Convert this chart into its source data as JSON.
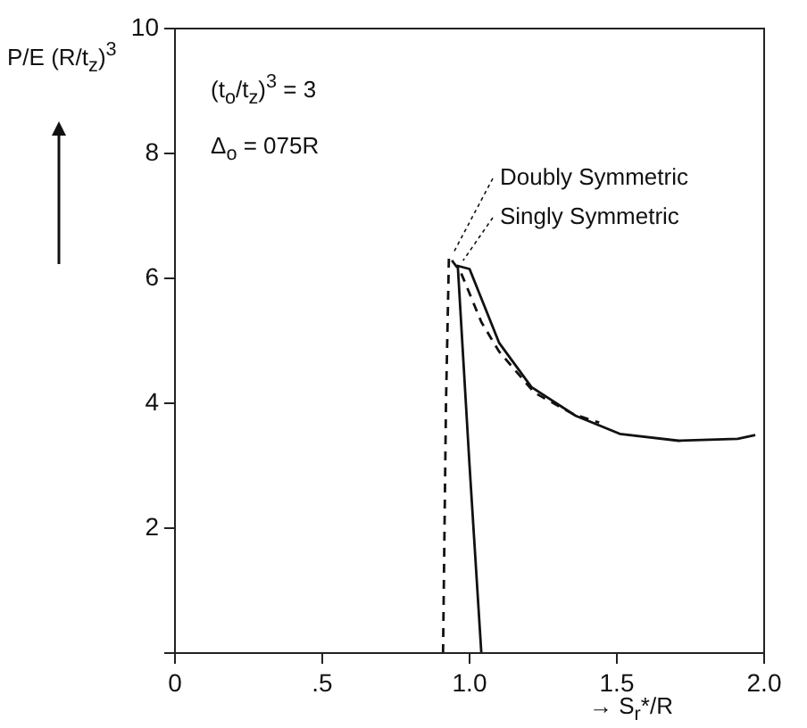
{
  "chart_data": {
    "type": "line",
    "xlabel": "→ S$_{r}$*/R",
    "ylabel": "P/E (R/t$_{z}$)$^{3}$",
    "annotations": [
      "(t$_{o}$/t$_{z}$)$^{3}$ = 3",
      "Δ$_{o}$ = 075R"
    ],
    "xlim": [
      0,
      2
    ],
    "xticks": [
      0,
      {
        "value": 0.5,
        "label": ".5"
      },
      {
        "value": 1,
        "label": "1.0"
      },
      {
        "value": 1.5,
        "label": "1.5"
      },
      {
        "value": 2,
        "label": "2.0"
      }
    ],
    "ylim": [
      0,
      10
    ],
    "yticks": [
      {
        "value": 0,
        "label": null
      },
      2,
      4,
      6,
      8,
      10
    ],
    "grid": false,
    "legend": false,
    "marker": "none",
    "series": [
      {
        "name": "Doubly Symmetric",
        "color": "#111111",
        "line_style": "dashed",
        "x": [
          0.91,
          0.92,
          0.93,
          0.97,
          1.04,
          1.1,
          1.22,
          1.35,
          1.44
        ],
        "values": [
          0,
          4,
          6.35,
          6.1,
          5.3,
          4.83,
          4.17,
          3.83,
          3.69
        ]
      },
      {
        "name": "Singly Symmetric",
        "color": "#111111",
        "line_style": "solid",
        "x": [
          1.04,
          1,
          0.96,
          1.0,
          1.1,
          1.21,
          1.36,
          1.51,
          1.71,
          1.91,
          1.97
        ],
        "values": [
          0,
          3,
          6.2,
          6.15,
          4.97,
          4.26,
          3.8,
          3.51,
          3.4,
          3.43,
          3.49
        ]
      }
    ]
  }
}
